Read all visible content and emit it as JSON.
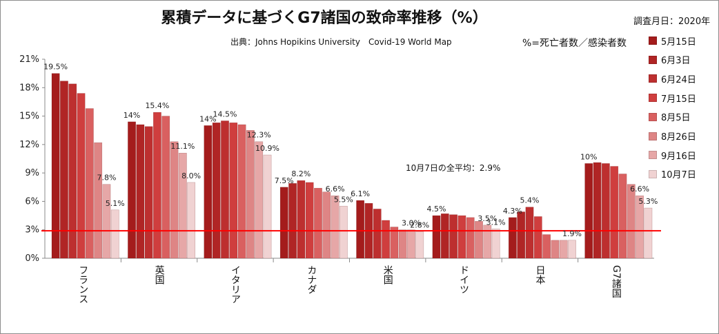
{
  "chart_data": {
    "type": "bar",
    "title": "累積データに基づくG7諸国の致命率推移（%）",
    "survey_note": "調査月日：2020年",
    "source": "出典：Johns Hopikins University　Covid-19 World Map",
    "definition": "%=死亡者数／感染者数",
    "categories": [
      "フランス",
      "英国",
      "イタリア",
      "カナダ",
      "米国",
      "ドイツ",
      "日本",
      "G7諸国"
    ],
    "series": [
      {
        "name": "5月15日",
        "color": "#a41c1c",
        "values": [
          19.5,
          14.4,
          14.0,
          7.5,
          6.1,
          4.5,
          4.3,
          10.0
        ]
      },
      {
        "name": "6月3日",
        "color": "#b02525",
        "values": [
          18.7,
          14.1,
          14.3,
          7.9,
          5.8,
          4.7,
          4.9,
          10.1
        ]
      },
      {
        "name": "6月24日",
        "color": "#bd2f2f",
        "values": [
          18.4,
          13.9,
          14.5,
          8.2,
          5.2,
          4.6,
          5.4,
          10.0
        ]
      },
      {
        "name": "7月15日",
        "color": "#cf3e3e",
        "values": [
          17.4,
          15.4,
          14.3,
          8.0,
          4.0,
          4.5,
          4.4,
          9.7
        ]
      },
      {
        "name": "8月5日",
        "color": "#d96060",
        "values": [
          15.8,
          15.0,
          14.1,
          7.4,
          3.3,
          4.3,
          2.5,
          8.9
        ]
      },
      {
        "name": "8月26日",
        "color": "#de8585",
        "values": [
          12.2,
          12.3,
          13.5,
          7.0,
          3.0,
          3.9,
          1.9,
          7.8
        ]
      },
      {
        "name": "9月16日",
        "color": "#e6a7a7",
        "values": [
          7.8,
          11.1,
          12.3,
          6.6,
          3.0,
          3.5,
          1.9,
          6.6
        ]
      },
      {
        "name": "10月7日",
        "color": "#f0d2d2",
        "values": [
          5.1,
          8.0,
          10.9,
          5.5,
          2.8,
          3.1,
          1.9,
          5.3
        ]
      }
    ],
    "y_ticks": [
      "0%",
      "3%",
      "6%",
      "9%",
      "12%",
      "15%",
      "18%",
      "21%"
    ],
    "ylim": [
      0,
      21
    ],
    "grid": false,
    "legend_position": "right",
    "reference_line": {
      "value": 2.9,
      "color": "#ff0000",
      "label": "10月7日の全平均：2.9%"
    },
    "data_labels": [
      {
        "category": 0,
        "series": 0,
        "text": "19.5%"
      },
      {
        "category": 0,
        "series": 6,
        "text": "7.8%"
      },
      {
        "category": 0,
        "series": 7,
        "text": "5.1%"
      },
      {
        "category": 1,
        "series": 0,
        "text": "14%"
      },
      {
        "category": 1,
        "series": 3,
        "text": "15.4%"
      },
      {
        "category": 1,
        "series": 6,
        "text": "11.1%"
      },
      {
        "category": 1,
        "series": 7,
        "text": "8.0%"
      },
      {
        "category": 2,
        "series": 0,
        "text": "14%"
      },
      {
        "category": 2,
        "series": 2,
        "text": "14.5%"
      },
      {
        "category": 2,
        "series": 6,
        "text": "12.3%"
      },
      {
        "category": 2,
        "series": 7,
        "text": "10.9%"
      },
      {
        "category": 3,
        "series": 0,
        "text": "7.5%"
      },
      {
        "category": 3,
        "series": 2,
        "text": "8.2%"
      },
      {
        "category": 3,
        "series": 6,
        "text": "6.6%"
      },
      {
        "category": 3,
        "series": 7,
        "text": "5.5%"
      },
      {
        "category": 4,
        "series": 0,
        "text": "6.1%"
      },
      {
        "category": 4,
        "series": 6,
        "text": "3.0%"
      },
      {
        "category": 4,
        "series": 7,
        "text": "2.8%"
      },
      {
        "category": 5,
        "series": 0,
        "text": "4.5%"
      },
      {
        "category": 5,
        "series": 6,
        "text": "3.5%"
      },
      {
        "category": 5,
        "series": 7,
        "text": "3.1%"
      },
      {
        "category": 6,
        "series": 0,
        "text": "4.3%"
      },
      {
        "category": 6,
        "series": 2,
        "text": "5.4%"
      },
      {
        "category": 6,
        "series": 7,
        "text": "1.9%"
      },
      {
        "category": 7,
        "series": 0,
        "text": "10%"
      },
      {
        "category": 7,
        "series": 6,
        "text": "6.6%"
      },
      {
        "category": 7,
        "series": 7,
        "text": "5.3%"
      }
    ]
  }
}
